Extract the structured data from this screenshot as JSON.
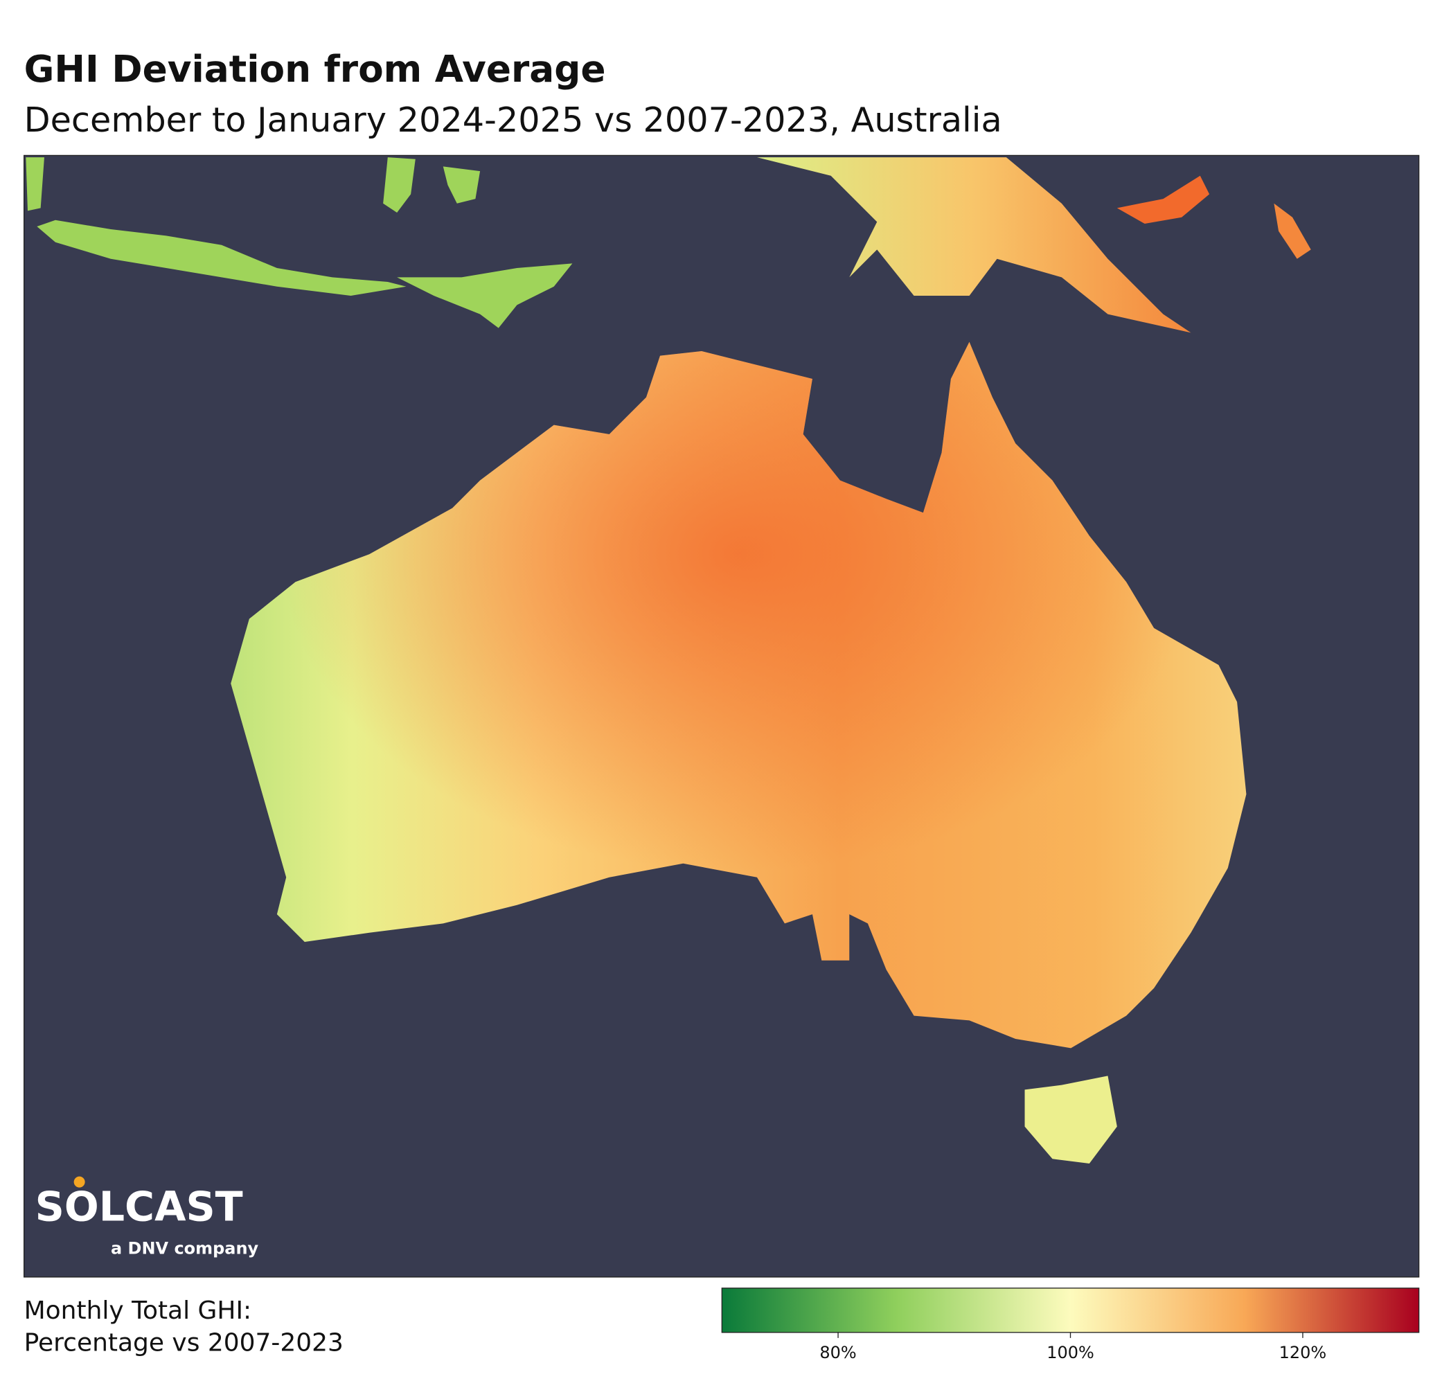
{
  "header": {
    "title": "GHI Deviation from Average",
    "subtitle": "December to January 2024-2025 vs 2007-2023, Australia"
  },
  "logo": {
    "name": "SOLCAST",
    "tagline": "a DNV company"
  },
  "legend": {
    "label_line1": "Monthly Total GHI:",
    "label_line2": "Percentage vs 2007-2023"
  },
  "colorbar": {
    "lim": [
      70,
      130
    ],
    "ticks": [
      {
        "value": 80,
        "label": "80%"
      },
      {
        "value": 100,
        "label": "100%"
      },
      {
        "value": 120,
        "label": "120%"
      }
    ]
  }
}
